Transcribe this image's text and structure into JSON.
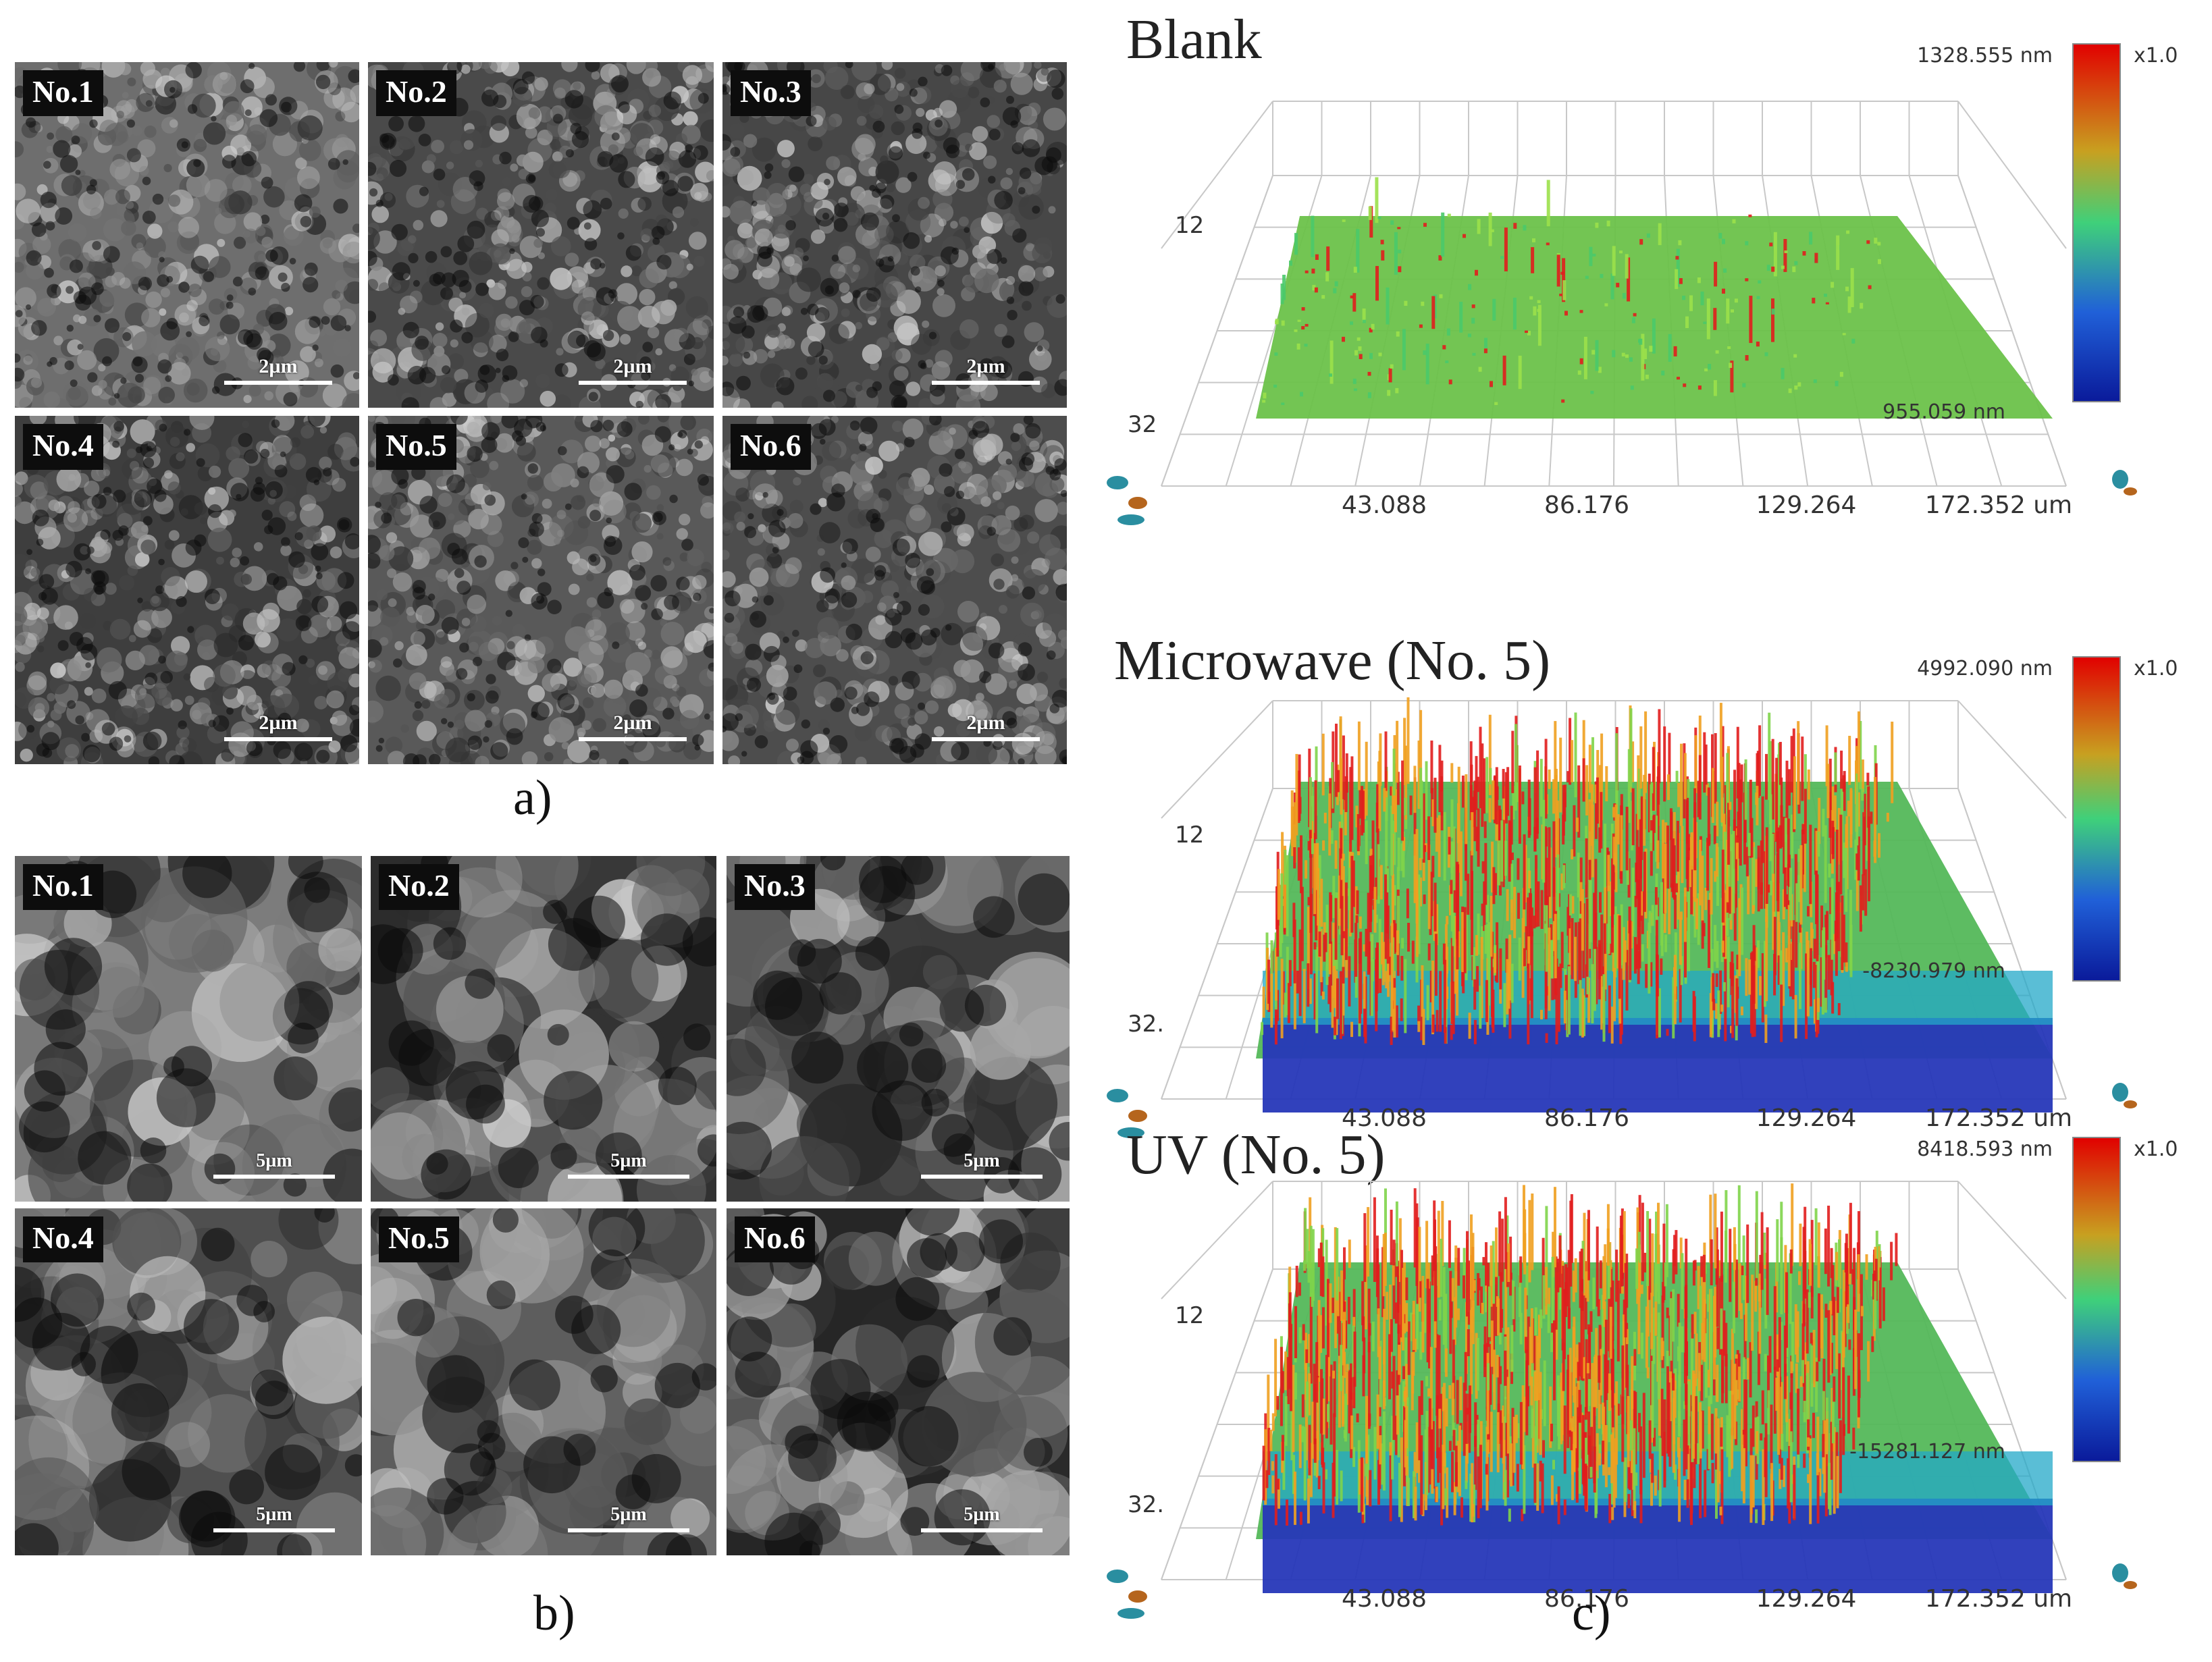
{
  "panel_a": {
    "letter": "a)",
    "tiles": [
      {
        "tag": "No.1",
        "scale": "2µm",
        "tone": "#6e6e6e"
      },
      {
        "tag": "No.2",
        "scale": "2µm",
        "tone": "#4a4a4a"
      },
      {
        "tag": "No.3",
        "scale": "2µm",
        "tone": "#474747"
      },
      {
        "tag": "No.4",
        "scale": "2µm",
        "tone": "#3e3e3e"
      },
      {
        "tag": "No.5",
        "scale": "2µm",
        "tone": "#595959"
      },
      {
        "tag": "No.6",
        "scale": "2µm",
        "tone": "#4d4d4d"
      }
    ]
  },
  "panel_b": {
    "letter": "b)",
    "tiles": [
      {
        "tag": "No.1",
        "scale": "5µm",
        "tone": "#7c7c7c"
      },
      {
        "tag": "No.2",
        "scale": "5µm",
        "tone": "#2c2c2c"
      },
      {
        "tag": "No.3",
        "scale": "5µm",
        "tone": "#3b3b3b"
      },
      {
        "tag": "No.4",
        "scale": "5µm",
        "tone": "#4f4f4f"
      },
      {
        "tag": "No.5",
        "scale": "5µm",
        "tone": "#5d5d5d"
      },
      {
        "tag": "No.6",
        "scale": "5µm",
        "tone": "#262626"
      }
    ]
  },
  "panel_c": {
    "letter": "c)",
    "plots": [
      {
        "title": "Blank",
        "z_max": "1328.555 nm",
        "z_min": "955.059 nm",
        "factor": "x1.0",
        "y_ticks": [
          "12",
          "32"
        ],
        "x_ticks": [
          "43.088",
          "86.176",
          "129.264",
          "172.352 um"
        ]
      },
      {
        "title": "Microwave (No. 5)",
        "z_max": "4992.090 nm",
        "z_min": "-8230.979 nm",
        "factor": "x1.0",
        "y_ticks": [
          "12",
          "32."
        ],
        "x_ticks": [
          "43.088",
          "86.176",
          "129.264",
          "172.352 um"
        ]
      },
      {
        "title": "UV (No. 5)",
        "z_max": "8418.593 nm",
        "z_min": "-15281.127 nm",
        "factor": "x1.0",
        "y_ticks": [
          "12",
          "32."
        ],
        "x_ticks": [
          "43.088",
          "86.176",
          "129.264",
          "172.352 um"
        ]
      }
    ]
  }
}
